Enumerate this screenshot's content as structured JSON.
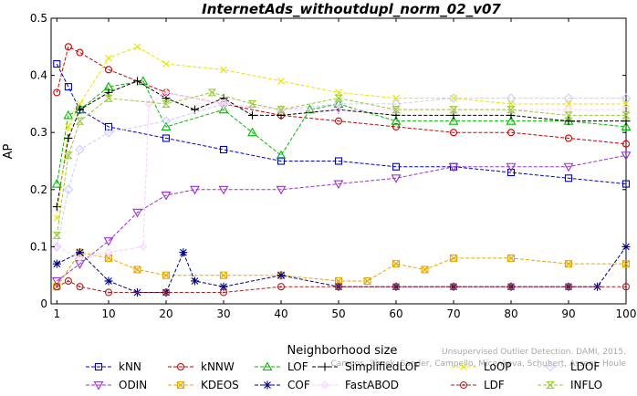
{
  "chart_data": {
    "type": "line",
    "title": "InternetAds_withoutdupl_norm_02_v07",
    "xlabel": "Neighborhood size",
    "ylabel": "AP",
    "xlim": [
      0,
      100
    ],
    "ylim": [
      0,
      0.5
    ],
    "xticks": [
      "1",
      "10",
      "20",
      "30",
      "40",
      "50",
      "60",
      "70",
      "80",
      "90",
      "100"
    ],
    "yticks": [
      "0",
      "0.1",
      "0.2",
      "0.3",
      "0.4",
      "0.5"
    ],
    "grid": false,
    "legend_position": "bottom",
    "credit": "Campos, Zimek, Sander, Campello, Micenkova, Schubert, Assent, Houle",
    "credit2": "Unsupervised Outlier Detection. DAMI, 2015.",
    "series": [
      {
        "name": "kNN",
        "color": "#0000cc",
        "marker": "square",
        "points": [
          [
            1,
            0.42
          ],
          [
            3,
            0.38
          ],
          [
            5,
            0.34
          ],
          [
            10,
            0.31
          ],
          [
            20,
            0.29
          ],
          [
            30,
            0.27
          ],
          [
            40,
            0.25
          ],
          [
            50,
            0.25
          ],
          [
            60,
            0.24
          ],
          [
            70,
            0.24
          ],
          [
            80,
            0.23
          ],
          [
            90,
            0.22
          ],
          [
            100,
            0.21
          ]
        ]
      },
      {
        "name": "kNNW",
        "color": "#cc0000",
        "marker": "circle",
        "points": [
          [
            1,
            0.37
          ],
          [
            3,
            0.45
          ],
          [
            5,
            0.44
          ],
          [
            10,
            0.41
          ],
          [
            20,
            0.37
          ],
          [
            30,
            0.35
          ],
          [
            40,
            0.33
          ],
          [
            50,
            0.32
          ],
          [
            60,
            0.31
          ],
          [
            70,
            0.3
          ],
          [
            80,
            0.3
          ],
          [
            90,
            0.29
          ],
          [
            100,
            0.28
          ]
        ]
      },
      {
        "name": "LOF",
        "color": "#00bb00",
        "marker": "triangle-up",
        "points": [
          [
            1,
            0.21
          ],
          [
            3,
            0.33
          ],
          [
            5,
            0.34
          ],
          [
            10,
            0.38
          ],
          [
            16,
            0.39
          ],
          [
            20,
            0.31
          ],
          [
            30,
            0.34
          ],
          [
            35,
            0.3
          ],
          [
            40,
            0.26
          ],
          [
            45,
            0.34
          ],
          [
            50,
            0.35
          ],
          [
            60,
            0.32
          ],
          [
            70,
            0.32
          ],
          [
            80,
            0.32
          ],
          [
            90,
            0.32
          ],
          [
            100,
            0.31
          ]
        ]
      },
      {
        "name": "SimplifiedLOF",
        "color": "#000000",
        "marker": "plus",
        "points": [
          [
            1,
            0.17
          ],
          [
            3,
            0.29
          ],
          [
            5,
            0.34
          ],
          [
            10,
            0.37
          ],
          [
            15,
            0.39
          ],
          [
            20,
            0.36
          ],
          [
            25,
            0.34
          ],
          [
            30,
            0.36
          ],
          [
            35,
            0.33
          ],
          [
            40,
            0.33
          ],
          [
            50,
            0.34
          ],
          [
            60,
            0.33
          ],
          [
            70,
            0.33
          ],
          [
            80,
            0.33
          ],
          [
            90,
            0.32
          ],
          [
            100,
            0.32
          ]
        ]
      },
      {
        "name": "LoOP",
        "color": "#e6e600",
        "marker": "x",
        "points": [
          [
            1,
            0.15
          ],
          [
            3,
            0.31
          ],
          [
            5,
            0.35
          ],
          [
            10,
            0.43
          ],
          [
            15,
            0.45
          ],
          [
            20,
            0.42
          ],
          [
            30,
            0.41
          ],
          [
            40,
            0.39
          ],
          [
            50,
            0.37
          ],
          [
            60,
            0.36
          ],
          [
            70,
            0.36
          ],
          [
            80,
            0.35
          ],
          [
            90,
            0.35
          ],
          [
            100,
            0.35
          ]
        ]
      },
      {
        "name": "LDOF",
        "color": "#ccccff",
        "marker": "diamond",
        "points": [
          [
            1,
            0.1
          ],
          [
            3,
            0.2
          ],
          [
            5,
            0.27
          ],
          [
            10,
            0.3
          ],
          [
            20,
            0.32
          ],
          [
            30,
            0.35
          ],
          [
            40,
            0.34
          ],
          [
            50,
            0.35
          ],
          [
            60,
            0.35
          ],
          [
            70,
            0.36
          ],
          [
            80,
            0.36
          ],
          [
            90,
            0.36
          ],
          [
            100,
            0.36
          ]
        ]
      },
      {
        "name": "ODIN",
        "color": "#9933cc",
        "marker": "triangle-down",
        "points": [
          [
            1,
            0.04
          ],
          [
            5,
            0.07
          ],
          [
            10,
            0.11
          ],
          [
            15,
            0.16
          ],
          [
            20,
            0.19
          ],
          [
            25,
            0.2
          ],
          [
            30,
            0.2
          ],
          [
            40,
            0.2
          ],
          [
            50,
            0.21
          ],
          [
            60,
            0.22
          ],
          [
            70,
            0.24
          ],
          [
            80,
            0.24
          ],
          [
            90,
            0.24
          ],
          [
            100,
            0.26
          ]
        ]
      },
      {
        "name": "KDEOS",
        "color": "#e6a800",
        "marker": "square-x",
        "points": [
          [
            1,
            0.03
          ],
          [
            5,
            0.09
          ],
          [
            10,
            0.08
          ],
          [
            15,
            0.06
          ],
          [
            20,
            0.05
          ],
          [
            30,
            0.05
          ],
          [
            40,
            0.05
          ],
          [
            50,
            0.04
          ],
          [
            55,
            0.04
          ],
          [
            60,
            0.07
          ],
          [
            65,
            0.06
          ],
          [
            70,
            0.08
          ],
          [
            80,
            0.08
          ],
          [
            90,
            0.07
          ],
          [
            100,
            0.07
          ]
        ]
      },
      {
        "name": "COF",
        "color": "#000080",
        "marker": "asterisk",
        "points": [
          [
            1,
            0.07
          ],
          [
            5,
            0.09
          ],
          [
            10,
            0.04
          ],
          [
            15,
            0.02
          ],
          [
            20,
            0.02
          ],
          [
            23,
            0.09
          ],
          [
            25,
            0.04
          ],
          [
            30,
            0.03
          ],
          [
            40,
            0.05
          ],
          [
            50,
            0.03
          ],
          [
            60,
            0.03
          ],
          [
            70,
            0.03
          ],
          [
            80,
            0.03
          ],
          [
            90,
            0.03
          ],
          [
            95,
            0.03
          ],
          [
            100,
            0.1
          ]
        ]
      },
      {
        "name": "FastABOD",
        "color": "#ffccff",
        "marker": "diamond-small",
        "points": [
          [
            1,
            0.1
          ],
          [
            5,
            0.08
          ],
          [
            10,
            0.09
          ],
          [
            16,
            0.1
          ],
          [
            17,
            0.35
          ],
          [
            20,
            0.37
          ],
          [
            30,
            0.35
          ],
          [
            40,
            0.34
          ],
          [
            50,
            0.34
          ],
          [
            60,
            0.34
          ],
          [
            70,
            0.34
          ],
          [
            80,
            0.34
          ],
          [
            90,
            0.34
          ],
          [
            100,
            0.34
          ]
        ]
      },
      {
        "name": "LDF",
        "color": "#aa2222",
        "marker": "circle-dot",
        "points": [
          [
            1,
            0.03
          ],
          [
            3,
            0.04
          ],
          [
            5,
            0.03
          ],
          [
            10,
            0.02
          ],
          [
            20,
            0.02
          ],
          [
            30,
            0.02
          ],
          [
            40,
            0.03
          ],
          [
            50,
            0.03
          ],
          [
            60,
            0.03
          ],
          [
            70,
            0.03
          ],
          [
            80,
            0.03
          ],
          [
            90,
            0.03
          ],
          [
            100,
            0.03
          ]
        ]
      },
      {
        "name": "INFLO",
        "color": "#99cc33",
        "marker": "hourglass",
        "points": [
          [
            1,
            0.12
          ],
          [
            3,
            0.26
          ],
          [
            5,
            0.32
          ],
          [
            10,
            0.36
          ],
          [
            20,
            0.35
          ],
          [
            28,
            0.37
          ],
          [
            35,
            0.35
          ],
          [
            40,
            0.34
          ],
          [
            50,
            0.36
          ],
          [
            60,
            0.34
          ],
          [
            70,
            0.34
          ],
          [
            80,
            0.34
          ],
          [
            90,
            0.33
          ],
          [
            100,
            0.33
          ]
        ]
      }
    ]
  }
}
